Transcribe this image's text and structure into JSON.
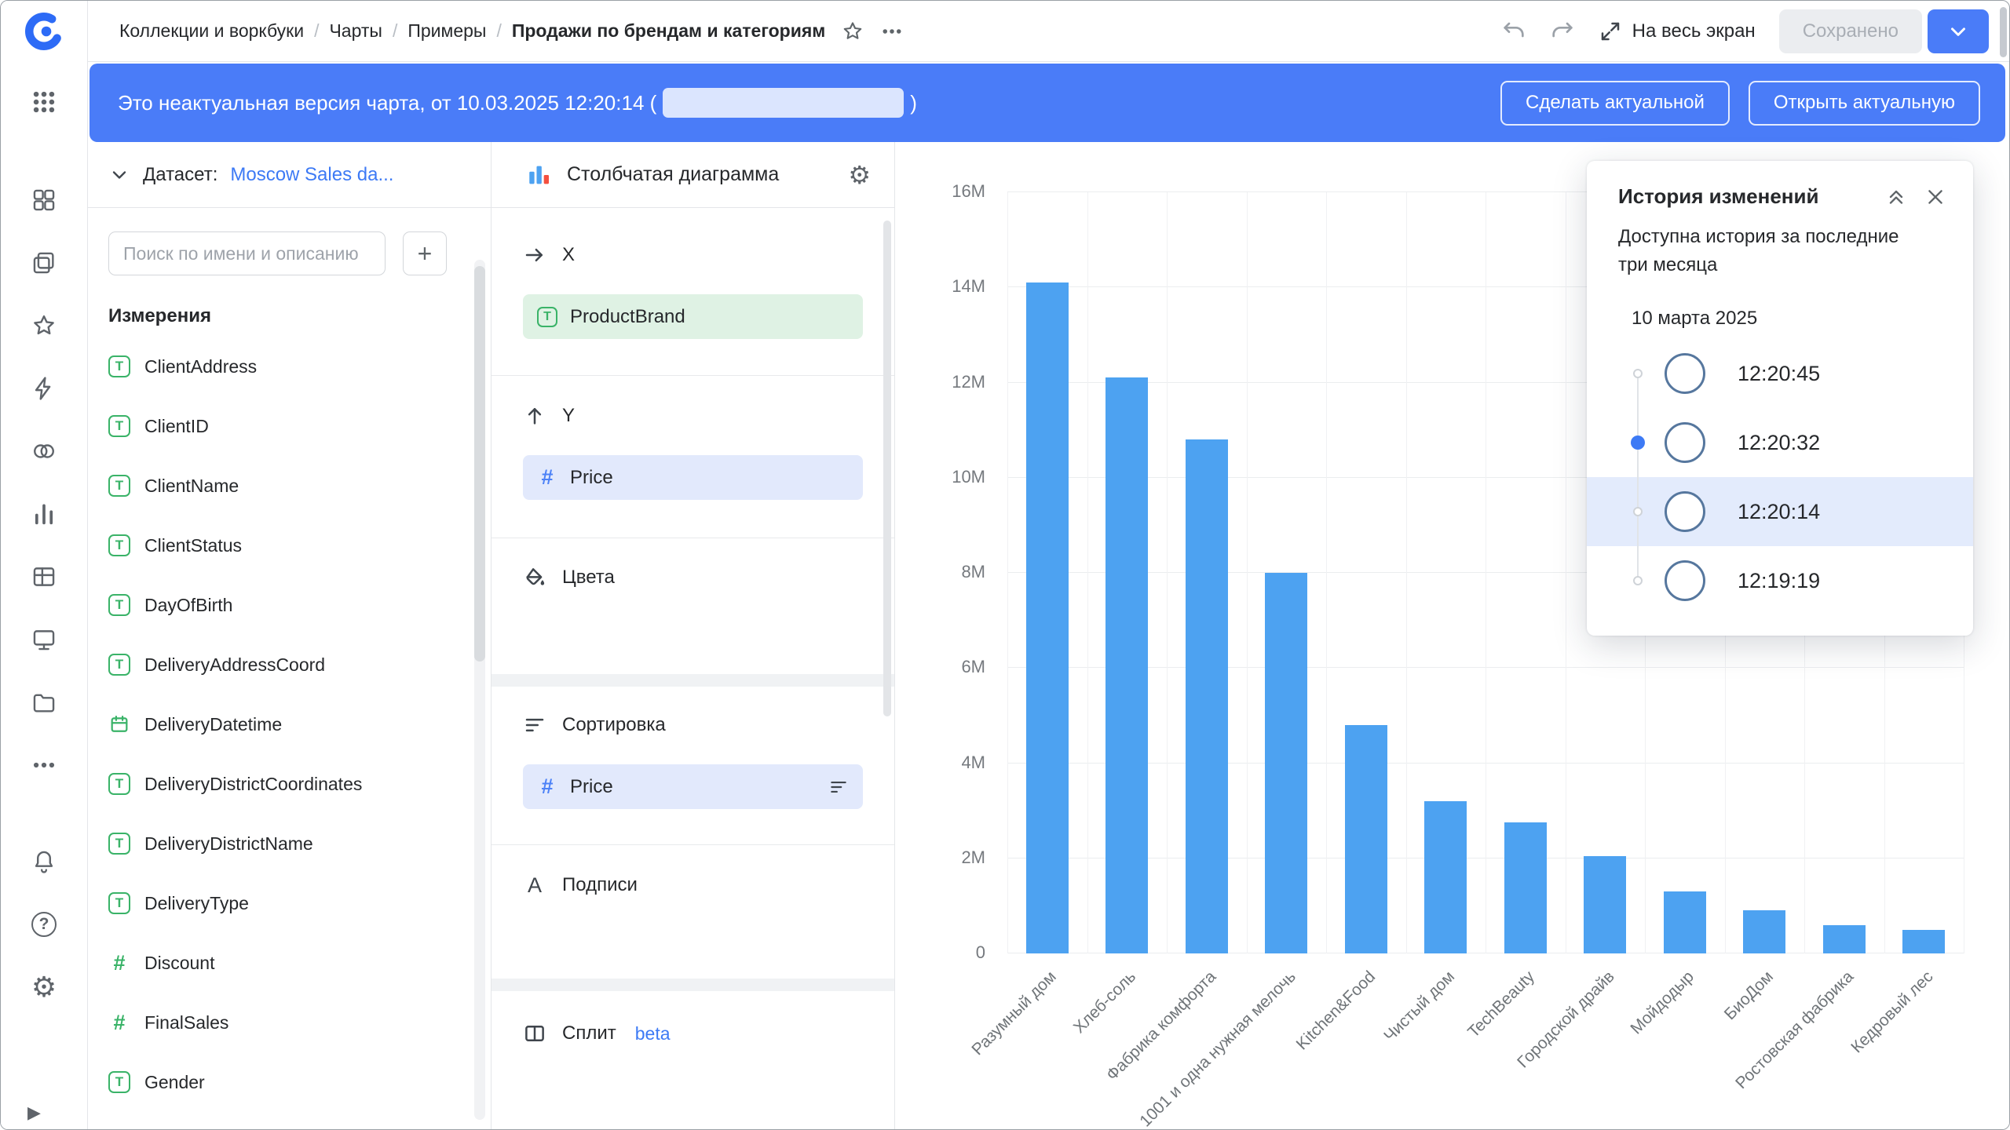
{
  "icons": {
    "string_type": "T",
    "number_type": "#",
    "labels_icon": "A"
  },
  "colors": {
    "banner_blue": "#4A7CF8",
    "accent_blue": "#3D7AF5",
    "bar_blue": "#4DA2F1",
    "field_green": "#3AB368",
    "selected_row_bg": "#E3EBFC"
  },
  "topbar": {
    "breadcrumb": [
      "Коллекции и воркбуки",
      "Чарты",
      "Примеры",
      "Продажи по брендам и категориям"
    ],
    "fullscreen_label": "На весь экран",
    "saved_button": "Сохранено"
  },
  "banner": {
    "text_before": "Это неактуальная версия чарта, от 10.03.2025 12:20:14 (",
    "text_after": ")",
    "make_actual_button": "Сделать актуальной",
    "open_actual_button": "Открыть актуальную"
  },
  "dataset_panel": {
    "label": "Датасет:",
    "dataset_link": "Moscow Sales da...",
    "search_placeholder": "Поиск по имени и описанию",
    "add_button": "+",
    "section_title": "Измерения",
    "fields": [
      {
        "name": "ClientAddress",
        "type": "string"
      },
      {
        "name": "ClientID",
        "type": "string"
      },
      {
        "name": "ClientName",
        "type": "string"
      },
      {
        "name": "ClientStatus",
        "type": "string"
      },
      {
        "name": "DayOfBirth",
        "type": "string"
      },
      {
        "name": "DeliveryAddressCoord",
        "type": "string"
      },
      {
        "name": "DeliveryDatetime",
        "type": "date"
      },
      {
        "name": "DeliveryDistrictCoordinates",
        "type": "string"
      },
      {
        "name": "DeliveryDistrictName",
        "type": "string"
      },
      {
        "name": "DeliveryType",
        "type": "string"
      },
      {
        "name": "Discount",
        "type": "number"
      },
      {
        "name": "FinalSales",
        "type": "number"
      },
      {
        "name": "Gender",
        "type": "string"
      }
    ]
  },
  "config_panel": {
    "chart_type_label": "Столбчатая диаграмма",
    "x_section": {
      "label": "X",
      "field": "ProductBrand",
      "field_type": "string"
    },
    "y_section": {
      "label": "Y",
      "field": "Price",
      "field_type": "number"
    },
    "colors_section": {
      "label": "Цвета"
    },
    "sort_section": {
      "label": "Сортировка",
      "field": "Price",
      "field_type": "number"
    },
    "labels_section": {
      "label": "Подписи"
    },
    "split_section": {
      "label": "Сплит",
      "badge": "beta"
    }
  },
  "chart_data": {
    "type": "bar",
    "title": "",
    "xlabel": "",
    "ylabel": "",
    "categories": [
      "Разумный дом",
      "Хлеб-соль",
      "Фабрика комфорта",
      "1001 и одна нужная мелочь",
      "Kitchen&Food",
      "Чистый дом",
      "TechBeauty",
      "Городской драйв",
      "Мойдодыр",
      "БиоДом",
      "Ростовская фабрика",
      "Кедровый лес"
    ],
    "values": [
      14100000,
      12100000,
      10800000,
      8000000,
      4800000,
      3200000,
      2750000,
      2050000,
      1300000,
      900000,
      600000,
      500000
    ],
    "ylim": [
      0,
      16000000
    ],
    "ytick_labels": [
      "0",
      "2M",
      "4M",
      "6M",
      "8M",
      "10M",
      "12M",
      "14M",
      "16M"
    ],
    "bar_color": "#4DA2F1",
    "grid": true,
    "legend": false
  },
  "history_panel": {
    "title": "История изменений",
    "subtitle": "Доступна история за последние три месяца",
    "date_header": "10 марта 2025",
    "entries": [
      {
        "time": "12:20:45",
        "state": "normal"
      },
      {
        "time": "12:20:32",
        "state": "current"
      },
      {
        "time": "12:20:14",
        "state": "selected"
      },
      {
        "time": "12:19:19",
        "state": "normal"
      }
    ]
  },
  "sidebar": {
    "icon_names": [
      "datalens-logo",
      "apps-grid-icon",
      "collections-icon",
      "workbooks-icon",
      "favorites-star-icon",
      "editor-bolt-icon",
      "relations-icon",
      "charts-icon",
      "tables-icon",
      "dashboards-icon",
      "storage-icon",
      "more-icon",
      "notifications-bell-icon",
      "help-icon",
      "settings-gear-icon",
      "collapse-arrow-icon"
    ]
  }
}
